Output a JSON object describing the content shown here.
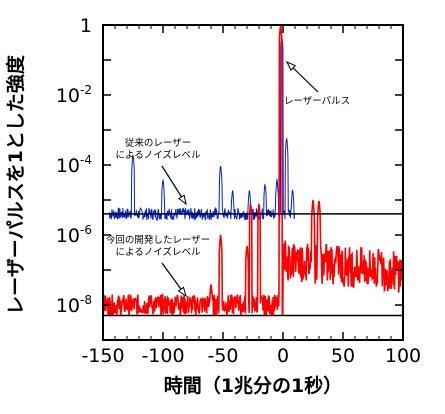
{
  "chart_data": {
    "type": "line",
    "xlabel": "時間（1兆分の1秒）",
    "ylabel": "レーザーパルスを1とした強度",
    "xlim": [
      -150,
      100
    ],
    "ylim_log10": [
      -9,
      0
    ],
    "y_scale": "log",
    "x_ticks": [
      -150,
      -100,
      -50,
      0,
      50,
      100
    ],
    "x_tick_labels": [
      "-150",
      "-100",
      "-50",
      "0",
      "50",
      "100"
    ],
    "y_ticks": [
      {
        "base": "1",
        "exp": ""
      },
      {
        "base": "10",
        "exp": "-2"
      },
      {
        "base": "10",
        "exp": "-4"
      },
      {
        "base": "10",
        "exp": "-6"
      },
      {
        "base": "10",
        "exp": "-8"
      }
    ],
    "y_tick_exponents": [
      0,
      -2,
      -4,
      -6,
      -8
    ],
    "series": [
      {
        "color": "#0022cc",
        "noise_floor": 4e-06,
        "x_range": [
          -145,
          10
        ],
        "spikes": [
          [
            -125,
            0.0002
          ],
          [
            -100,
            4e-05
          ],
          [
            -52,
            0.0001
          ],
          [
            -42,
            2e-05
          ],
          [
            -28,
            2e-05
          ],
          [
            -15,
            3e-05
          ],
          [
            -5,
            4e-05
          ],
          [
            -1,
            0.5
          ],
          [
            3,
            0.0006
          ],
          [
            8,
            2e-05
          ]
        ]
      },
      {
        "color": "#ff0000",
        "noise_floor": 1e-08,
        "x_range": [
          -150,
          100
        ],
        "spikes": [
          [
            -110,
            2e-08
          ],
          [
            -88,
            2e-08
          ],
          [
            -60,
            4e-08
          ],
          [
            -52,
            1e-06
          ],
          [
            -38,
            2e-08
          ],
          [
            -30,
            5e-07
          ],
          [
            -27,
            8e-06
          ],
          [
            -20,
            8e-06
          ],
          [
            -2,
            1.0
          ],
          [
            12,
            3e-07
          ],
          [
            25,
            1e-05
          ],
          [
            30,
            1e-05
          ],
          [
            45,
            5e-07
          ],
          [
            60,
            8e-08
          ],
          [
            80,
            3e-07
          ]
        ]
      }
    ],
    "reference_lines": [
      4e-06,
      5e-09
    ],
    "annotations": [
      {
        "lines": [
          "レーザーパルス"
        ],
        "x": 20,
        "y": 0.005
      },
      {
        "lines": [
          "従来のレーザー",
          "によるノイズレベル"
        ],
        "x": -112,
        "y": 0.0001
      },
      {
        "lines": [
          "今回の開発したレーザー",
          "によるノイズレベル"
        ],
        "x": -117,
        "y": 5e-07
      }
    ]
  }
}
